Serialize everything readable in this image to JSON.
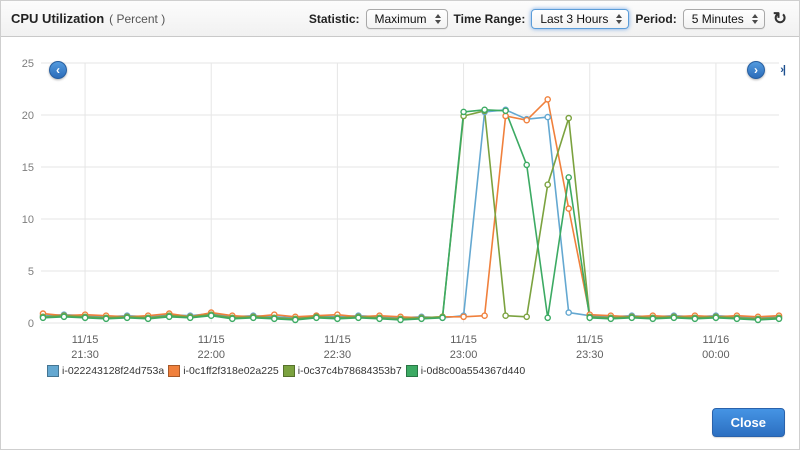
{
  "header": {
    "title": "CPU Utilization",
    "subtitle": "( Percent )",
    "statistic_label": "Statistic:",
    "statistic_value": "Maximum",
    "time_range_label": "Time Range:",
    "time_range_value": "Last 3 Hours",
    "period_label": "Period:",
    "period_value": "5 Minutes"
  },
  "icons": {
    "refresh": "↻",
    "prev": "‹",
    "next": "›",
    "skip_end": "›|"
  },
  "footer": {
    "close_label": "Close"
  },
  "chart_data": {
    "type": "line",
    "title": "CPU Utilization (Percent)",
    "ylabel": "Percent",
    "ylim": [
      0,
      25
    ],
    "yticks": [
      0,
      5,
      10,
      15,
      20,
      25
    ],
    "grid": true,
    "legend_position": "bottom",
    "point_count": 36,
    "period_minutes": 5,
    "x_tick_indices": [
      2,
      8,
      14,
      20,
      26,
      32
    ],
    "x_tick_dates": [
      "11/15",
      "11/15",
      "11/15",
      "11/15",
      "11/15",
      "11/16"
    ],
    "x_tick_times": [
      "21:30",
      "22:00",
      "22:30",
      "23:00",
      "23:30",
      "00:00"
    ],
    "series": [
      {
        "name": "i-022243128f24d753a",
        "color": "#64a8d1",
        "values": [
          0.7,
          0.8,
          0.7,
          0.6,
          0.7,
          0.6,
          0.8,
          0.7,
          0.9,
          0.6,
          0.7,
          0.6,
          0.5,
          0.7,
          0.6,
          0.7,
          0.6,
          0.5,
          0.6,
          0.5,
          0.7,
          20.3,
          20.5,
          19.6,
          19.8,
          1.0,
          0.7,
          0.6,
          0.7,
          0.6,
          0.7,
          0.6,
          0.7,
          0.6,
          0.5,
          0.6
        ]
      },
      {
        "name": "i-0c1ff2f318e02a225",
        "color": "#f0803c",
        "values": [
          0.9,
          0.7,
          0.8,
          0.7,
          0.6,
          0.7,
          0.9,
          0.6,
          1.0,
          0.7,
          0.6,
          0.8,
          0.6,
          0.7,
          0.8,
          0.6,
          0.7,
          0.6,
          0.5,
          0.6,
          0.6,
          0.7,
          19.9,
          19.5,
          21.5,
          11.0,
          0.8,
          0.7,
          0.6,
          0.7,
          0.6,
          0.7,
          0.6,
          0.7,
          0.6,
          0.7
        ]
      },
      {
        "name": "i-0c37c4b78684353b7",
        "color": "#7ba23f",
        "values": [
          0.6,
          0.7,
          0.6,
          0.5,
          0.6,
          0.5,
          0.7,
          0.6,
          0.8,
          0.5,
          0.6,
          0.5,
          0.4,
          0.6,
          0.5,
          0.6,
          0.5,
          0.4,
          0.5,
          0.6,
          19.9,
          20.4,
          0.7,
          0.6,
          13.3,
          19.7,
          0.6,
          0.5,
          0.6,
          0.5,
          0.6,
          0.5,
          0.6,
          0.5,
          0.4,
          0.5
        ]
      },
      {
        "name": "i-0d8c00a554367d440",
        "color": "#3caa63",
        "values": [
          0.5,
          0.6,
          0.5,
          0.4,
          0.5,
          0.4,
          0.6,
          0.5,
          0.7,
          0.4,
          0.5,
          0.4,
          0.3,
          0.5,
          0.4,
          0.5,
          0.4,
          0.3,
          0.4,
          0.5,
          20.3,
          20.5,
          20.4,
          15.2,
          0.5,
          14.0,
          0.5,
          0.4,
          0.5,
          0.4,
          0.5,
          0.4,
          0.5,
          0.4,
          0.3,
          0.4
        ]
      }
    ]
  }
}
